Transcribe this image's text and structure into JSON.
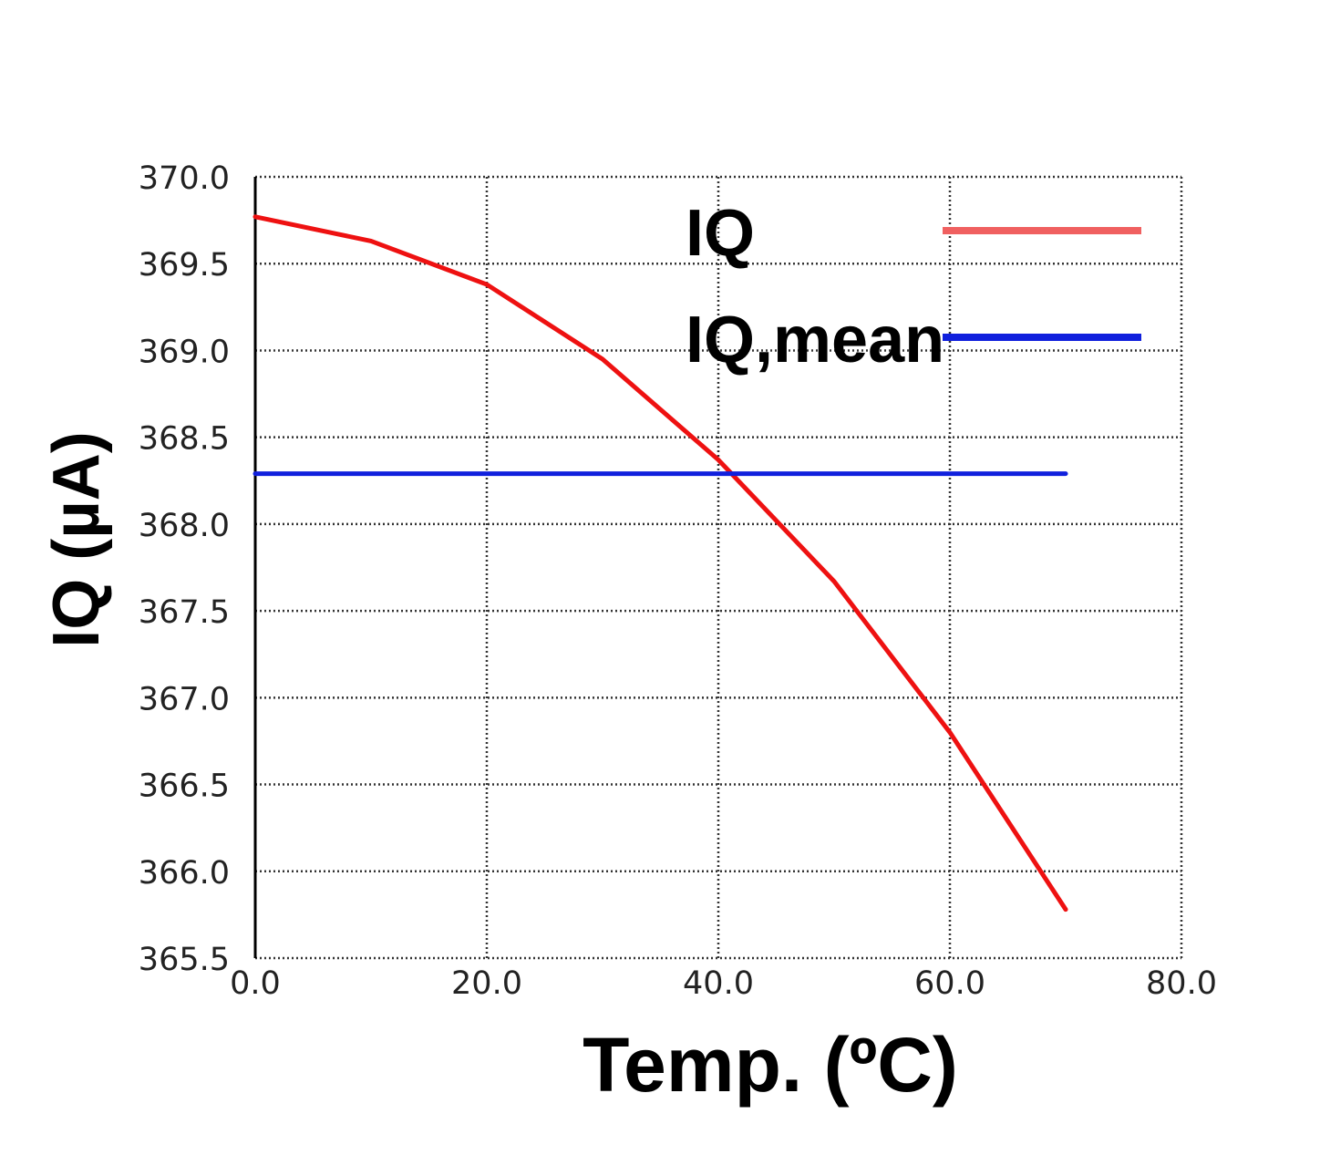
{
  "chart_data": {
    "type": "line",
    "xlabel": "Temp. (ºC)",
    "ylabel": "IQ (µA)",
    "xlim": [
      0,
      80
    ],
    "ylim": [
      365.5,
      370.0
    ],
    "xticks": [
      "0.0",
      "20.0",
      "40.0",
      "60.0",
      "80.0"
    ],
    "yticks": [
      "365.5",
      "366.0",
      "366.5",
      "367.0",
      "367.5",
      "368.0",
      "368.5",
      "369.0",
      "369.5",
      "370.0"
    ],
    "grid": true,
    "legend_position": "top-right",
    "series": [
      {
        "name": "IQ",
        "color": "#ee1111",
        "legend_color": "#f06060",
        "x": [
          0,
          10,
          20,
          30,
          40,
          50,
          60,
          70
        ],
        "y": [
          369.77,
          369.63,
          369.38,
          368.95,
          368.37,
          367.67,
          366.8,
          365.78
        ]
      },
      {
        "name": "IQ,mean",
        "color": "#1020dd",
        "legend_color": "#1020dd",
        "x": [
          0,
          70
        ],
        "y": [
          368.29,
          368.29
        ]
      }
    ]
  }
}
